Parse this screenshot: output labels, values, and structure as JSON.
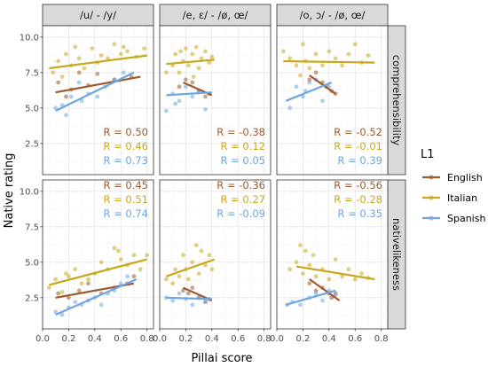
{
  "chart_data": {
    "type": "scatter",
    "xlabel": "Pillai score",
    "ylabel": "Native rating",
    "xlim": [
      0,
      0.85
    ],
    "ylim": [
      0.3,
      10.8
    ],
    "x_ticks": [
      "0.0",
      "0.2",
      "0.4",
      "0.6",
      "0.8"
    ],
    "y_ticks": [
      "2.5",
      "5.0",
      "7.5",
      "10.0"
    ],
    "columns": [
      "/u/ - /y/",
      "/e, ɛ/ - /ø, œ/",
      "/o, ɔ/ - /ø, œ/"
    ],
    "rows": [
      "comprehensibility",
      "nativelikeness"
    ],
    "legend": {
      "title": "L1",
      "position": "right",
      "entries": [
        "English",
        "Italian",
        "Spanish"
      ]
    },
    "colors": {
      "English": "#9c5a2e",
      "Italian": "#c8a81c",
      "Spanish": "#6fa5e0"
    },
    "panels": [
      {
        "row": 0,
        "col": 0,
        "lines": {
          "English": [
            [
              0.1,
              6.1
            ],
            [
              0.75,
              7.2
            ]
          ],
          "Italian": [
            [
              0.05,
              7.8
            ],
            [
              0.8,
              8.7
            ]
          ],
          "Spanish": [
            [
              0.1,
              4.8
            ],
            [
              0.7,
              7.5
            ]
          ]
        },
        "r": [
          "R = 0.50",
          "R = 0.46",
          "R = 0.73"
        ],
        "points": {
          "English": [
            [
              0.12,
              6.8
            ],
            [
              0.22,
              6.3
            ],
            [
              0.28,
              7.5
            ],
            [
              0.35,
              6.6
            ],
            [
              0.42,
              7.4
            ],
            [
              0.55,
              7.0
            ],
            [
              0.68,
              7.2
            ],
            [
              0.18,
              5.8
            ]
          ],
          "Italian": [
            [
              0.08,
              7.5
            ],
            [
              0.12,
              8.3
            ],
            [
              0.18,
              8.8
            ],
            [
              0.22,
              8.0
            ],
            [
              0.28,
              8.5
            ],
            [
              0.32,
              7.8
            ],
            [
              0.38,
              9.2
            ],
            [
              0.45,
              8.7
            ],
            [
              0.5,
              8.5
            ],
            [
              0.55,
              9.5
            ],
            [
              0.6,
              8.8
            ],
            [
              0.65,
              9.0
            ],
            [
              0.72,
              8.6
            ],
            [
              0.78,
              9.2
            ],
            [
              0.25,
              9.3
            ],
            [
              0.42,
              8.2
            ],
            [
              0.15,
              7.2
            ],
            [
              0.62,
              9.3
            ]
          ],
          "Spanish": [
            [
              0.1,
              5.0
            ],
            [
              0.18,
              4.5
            ],
            [
              0.22,
              5.8
            ],
            [
              0.3,
              5.5
            ],
            [
              0.35,
              6.0
            ],
            [
              0.42,
              5.8
            ],
            [
              0.48,
              6.5
            ],
            [
              0.55,
              7.0
            ],
            [
              0.62,
              7.5
            ],
            [
              0.28,
              6.8
            ],
            [
              0.15,
              5.2
            ]
          ]
        }
      },
      {
        "row": 0,
        "col": 1,
        "lines": {
          "English": [
            [
              0.18,
              6.8
            ],
            [
              0.4,
              5.9
            ]
          ],
          "Italian": [
            [
              0.05,
              8.1
            ],
            [
              0.42,
              8.4
            ]
          ],
          "Spanish": [
            [
              0.05,
              5.9
            ],
            [
              0.4,
              6.1
            ]
          ]
        },
        "r": [
          "R = -0.38",
          "R = 0.12",
          "R = 0.05"
        ],
        "points": {
          "English": [
            [
              0.15,
              6.5
            ],
            [
              0.2,
              7.0
            ],
            [
              0.25,
              6.8
            ],
            [
              0.3,
              6.2
            ],
            [
              0.35,
              5.8
            ],
            [
              0.38,
              6.0
            ]
          ],
          "Italian": [
            [
              0.05,
              7.5
            ],
            [
              0.1,
              8.0
            ],
            [
              0.12,
              8.8
            ],
            [
              0.15,
              7.5
            ],
            [
              0.18,
              8.3
            ],
            [
              0.2,
              9.2
            ],
            [
              0.22,
              8.0
            ],
            [
              0.25,
              8.8
            ],
            [
              0.28,
              9.3
            ],
            [
              0.3,
              7.8
            ],
            [
              0.32,
              8.5
            ],
            [
              0.35,
              9.0
            ],
            [
              0.38,
              8.2
            ],
            [
              0.4,
              8.6
            ],
            [
              0.16,
              9.0
            ],
            [
              0.26,
              7.2
            ]
          ],
          "Spanish": [
            [
              0.05,
              4.8
            ],
            [
              0.1,
              6.0
            ],
            [
              0.15,
              5.5
            ],
            [
              0.2,
              6.5
            ],
            [
              0.25,
              5.8
            ],
            [
              0.3,
              6.2
            ],
            [
              0.35,
              4.9
            ],
            [
              0.12,
              5.3
            ]
          ]
        }
      },
      {
        "row": 0,
        "col": 2,
        "lines": {
          "English": [
            [
              0.25,
              7.3
            ],
            [
              0.45,
              6.0
            ]
          ],
          "Italian": [
            [
              0.05,
              8.3
            ],
            [
              0.75,
              8.2
            ]
          ],
          "Spanish": [
            [
              0.07,
              5.5
            ],
            [
              0.42,
              6.8
            ]
          ]
        },
        "r": [
          "R = -0.52",
          "R = -0.01",
          "R = 0.39"
        ],
        "points": {
          "English": [
            [
              0.25,
              7.0
            ],
            [
              0.3,
              7.5
            ],
            [
              0.35,
              6.8
            ],
            [
              0.38,
              6.5
            ],
            [
              0.42,
              6.2
            ],
            [
              0.45,
              6.0
            ]
          ],
          "Italian": [
            [
              0.05,
              9.0
            ],
            [
              0.1,
              8.5
            ],
            [
              0.15,
              8.0
            ],
            [
              0.2,
              9.5
            ],
            [
              0.22,
              8.3
            ],
            [
              0.25,
              7.8
            ],
            [
              0.3,
              8.8
            ],
            [
              0.35,
              8.0
            ],
            [
              0.4,
              9.0
            ],
            [
              0.45,
              8.5
            ],
            [
              0.5,
              8.0
            ],
            [
              0.55,
              8.8
            ],
            [
              0.6,
              9.5
            ],
            [
              0.65,
              8.2
            ],
            [
              0.7,
              8.7
            ],
            [
              0.18,
              7.3
            ]
          ],
          "Spanish": [
            [
              0.1,
              5.0
            ],
            [
              0.15,
              6.5
            ],
            [
              0.2,
              5.8
            ],
            [
              0.25,
              6.8
            ],
            [
              0.3,
              7.0
            ],
            [
              0.35,
              5.5
            ],
            [
              0.4,
              6.5
            ],
            [
              0.22,
              6.2
            ]
          ]
        }
      },
      {
        "row": 1,
        "col": 0,
        "lines": {
          "English": [
            [
              0.1,
              2.5
            ],
            [
              0.7,
              3.5
            ]
          ],
          "Italian": [
            [
              0.05,
              3.4
            ],
            [
              0.8,
              5.2
            ]
          ],
          "Spanish": [
            [
              0.1,
              1.3
            ],
            [
              0.72,
              3.8
            ]
          ]
        },
        "r": [
          "R = 0.45",
          "R = 0.51",
          "R = 0.74"
        ],
        "points": {
          "English": [
            [
              0.12,
              2.8
            ],
            [
              0.2,
              2.5
            ],
            [
              0.28,
              3.0
            ],
            [
              0.35,
              3.5
            ],
            [
              0.45,
              2.8
            ],
            [
              0.55,
              3.2
            ],
            [
              0.65,
              3.5
            ],
            [
              0.7,
              4.0
            ]
          ],
          "Italian": [
            [
              0.05,
              3.2
            ],
            [
              0.1,
              3.8
            ],
            [
              0.15,
              2.9
            ],
            [
              0.2,
              4.0
            ],
            [
              0.25,
              4.5
            ],
            [
              0.3,
              3.5
            ],
            [
              0.35,
              3.8
            ],
            [
              0.4,
              4.2
            ],
            [
              0.45,
              5.0
            ],
            [
              0.5,
              4.5
            ],
            [
              0.55,
              6.0
            ],
            [
              0.6,
              5.2
            ],
            [
              0.65,
              4.8
            ],
            [
              0.7,
              5.5
            ],
            [
              0.75,
              4.5
            ],
            [
              0.8,
              5.5
            ],
            [
              0.18,
              4.2
            ],
            [
              0.58,
              5.8
            ]
          ],
          "Spanish": [
            [
              0.1,
              1.5
            ],
            [
              0.15,
              1.3
            ],
            [
              0.2,
              1.8
            ],
            [
              0.3,
              2.0
            ],
            [
              0.35,
              2.3
            ],
            [
              0.4,
              2.5
            ],
            [
              0.45,
              2.0
            ],
            [
              0.5,
              2.8
            ],
            [
              0.55,
              3.0
            ],
            [
              0.6,
              3.5
            ],
            [
              0.65,
              4.0
            ],
            [
              0.25,
              2.2
            ]
          ]
        }
      },
      {
        "row": 1,
        "col": 1,
        "lines": {
          "English": [
            [
              0.18,
              3.2
            ],
            [
              0.4,
              2.3
            ]
          ],
          "Italian": [
            [
              0.05,
              4.0
            ],
            [
              0.42,
              5.2
            ]
          ],
          "Spanish": [
            [
              0.05,
              2.5
            ],
            [
              0.4,
              2.4
            ]
          ]
        },
        "r": [
          "R = -0.36",
          "R = 0.27",
          "R = -0.09"
        ],
        "points": {
          "English": [
            [
              0.18,
              3.0
            ],
            [
              0.22,
              2.8
            ],
            [
              0.25,
              3.2
            ],
            [
              0.3,
              2.5
            ],
            [
              0.35,
              2.2
            ],
            [
              0.38,
              2.4
            ]
          ],
          "Italian": [
            [
              0.05,
              3.8
            ],
            [
              0.1,
              3.5
            ],
            [
              0.15,
              4.0
            ],
            [
              0.18,
              5.5
            ],
            [
              0.2,
              4.5
            ],
            [
              0.22,
              3.8
            ],
            [
              0.25,
              5.0
            ],
            [
              0.28,
              6.2
            ],
            [
              0.3,
              4.2
            ],
            [
              0.32,
              5.8
            ],
            [
              0.35,
              4.8
            ],
            [
              0.38,
              5.5
            ],
            [
              0.4,
              4.5
            ],
            [
              0.12,
              4.5
            ]
          ],
          "Spanish": [
            [
              0.05,
              2.5
            ],
            [
              0.1,
              2.3
            ],
            [
              0.15,
              2.8
            ],
            [
              0.2,
              2.4
            ],
            [
              0.25,
              2.0
            ],
            [
              0.3,
              2.5
            ],
            [
              0.35,
              2.2
            ]
          ]
        }
      },
      {
        "row": 1,
        "col": 2,
        "lines": {
          "English": [
            [
              0.25,
              3.8
            ],
            [
              0.48,
              2.3
            ]
          ],
          "Italian": [
            [
              0.15,
              4.7
            ],
            [
              0.75,
              3.8
            ]
          ],
          "Spanish": [
            [
              0.07,
              2.0
            ],
            [
              0.45,
              3.0
            ]
          ]
        },
        "r": [
          "R = -0.56",
          "R = -0.28",
          "R = 0.35"
        ],
        "points": {
          "English": [
            [
              0.25,
              3.5
            ],
            [
              0.3,
              3.0
            ],
            [
              0.35,
              3.2
            ],
            [
              0.4,
              2.8
            ],
            [
              0.42,
              2.5
            ],
            [
              0.45,
              2.8
            ]
          ],
          "Italian": [
            [
              0.1,
              4.5
            ],
            [
              0.15,
              5.0
            ],
            [
              0.18,
              6.2
            ],
            [
              0.2,
              4.2
            ],
            [
              0.25,
              4.8
            ],
            [
              0.28,
              5.5
            ],
            [
              0.3,
              4.0
            ],
            [
              0.35,
              4.5
            ],
            [
              0.4,
              3.8
            ],
            [
              0.45,
              5.2
            ],
            [
              0.5,
              4.0
            ],
            [
              0.55,
              4.5
            ],
            [
              0.6,
              3.8
            ],
            [
              0.65,
              4.2
            ],
            [
              0.7,
              3.9
            ],
            [
              0.22,
              5.8
            ]
          ],
          "Spanish": [
            [
              0.08,
              2.0
            ],
            [
              0.12,
              2.2
            ],
            [
              0.18,
              2.0
            ],
            [
              0.25,
              2.5
            ],
            [
              0.3,
              2.8
            ],
            [
              0.35,
              2.3
            ],
            [
              0.4,
              3.0
            ],
            [
              0.45,
              2.7
            ]
          ]
        }
      }
    ]
  }
}
